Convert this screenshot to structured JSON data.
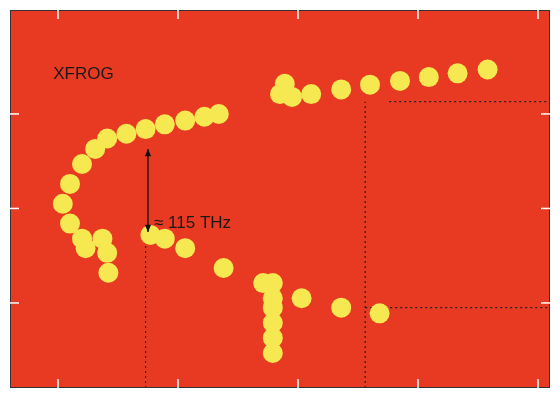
{
  "chart_data": {
    "type": "heatmap",
    "xlim": [
      -0.4,
      4.1
    ],
    "ylim": [
      0.1,
      4.1
    ],
    "xticks": [
      0,
      1,
      2,
      3,
      4
    ],
    "yticks": [
      1,
      2,
      3
    ],
    "tick_labels": false,
    "grid": false,
    "cells": [
      [
        1.85,
        3.21,
        0.6
      ],
      [
        1.89,
        3.32,
        0.5
      ],
      [
        1.95,
        3.18,
        0.7
      ],
      [
        2.11,
        3.21,
        0.6
      ],
      [
        2.36,
        3.26,
        0.6
      ],
      [
        2.6,
        3.31,
        0.6
      ],
      [
        2.85,
        3.35,
        0.55
      ],
      [
        3.09,
        3.39,
        0.5
      ],
      [
        3.33,
        3.43,
        0.45
      ],
      [
        3.58,
        3.47,
        0.3
      ],
      [
        0.04,
        2.05,
        0.7
      ],
      [
        0.1,
        2.26,
        0.8
      ],
      [
        0.2,
        2.47,
        0.8
      ],
      [
        0.31,
        2.63,
        0.85
      ],
      [
        0.41,
        2.74,
        0.7
      ],
      [
        0.57,
        2.79,
        0.6
      ],
      [
        0.73,
        2.84,
        0.75
      ],
      [
        0.89,
        2.89,
        0.6
      ],
      [
        1.06,
        2.93,
        0.5
      ],
      [
        1.22,
        2.97,
        0.4
      ],
      [
        1.34,
        3.0,
        0.3
      ],
      [
        0.1,
        1.84,
        0.8
      ],
      [
        0.2,
        1.68,
        0.85
      ],
      [
        0.37,
        1.68,
        0.95
      ],
      [
        0.41,
        1.53,
        0.7
      ],
      [
        0.42,
        1.32,
        0.5
      ],
      [
        0.23,
        1.58,
        0.7
      ],
      [
        0.77,
        1.72,
        0.75
      ],
      [
        0.89,
        1.68,
        0.6
      ],
      [
        1.06,
        1.58,
        0.4
      ],
      [
        1.38,
        1.37,
        0.25
      ],
      [
        1.71,
        1.21,
        0.25
      ],
      [
        2.03,
        1.05,
        0.2
      ],
      [
        2.36,
        0.95,
        0.15
      ],
      [
        2.68,
        0.89,
        0.12
      ],
      [
        1.79,
        1.21,
        0.6
      ],
      [
        1.79,
        1.05,
        0.85
      ],
      [
        1.79,
        0.95,
        1.0
      ],
      [
        1.79,
        0.79,
        0.85
      ],
      [
        1.79,
        0.63,
        0.6
      ],
      [
        1.79,
        0.47,
        0.35
      ]
    ],
    "annotations": [
      {
        "text": "XFROG",
        "x": -0.04,
        "y": 3.42
      },
      {
        "text": "≈ 115 THz",
        "x": 0.8,
        "y": 1.84
      }
    ],
    "arrows": [
      {
        "x": [
          0.75,
          0.75
        ],
        "y": [
          2.63,
          1.75
        ]
      }
    ],
    "lines": [
      {
        "x": [
          0.73,
          0.73
        ],
        "y": [
          0.1,
          1.68
        ],
        "line_style": "dotted"
      },
      {
        "x": [
          2.56,
          2.56
        ],
        "y": [
          0.1,
          3.13
        ],
        "line_style": "dotted"
      },
      {
        "x": [
          2.76,
          4.1
        ],
        "y": [
          3.13,
          3.13
        ],
        "line_style": "dotted"
      },
      {
        "x": [
          2.56,
          4.1
        ],
        "y": [
          0.95,
          0.95
        ],
        "line_style": "dotted"
      }
    ]
  }
}
